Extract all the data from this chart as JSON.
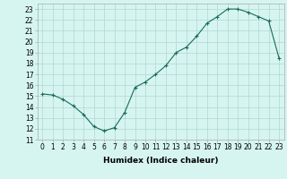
{
  "x": [
    0,
    1,
    2,
    3,
    4,
    5,
    6,
    7,
    8,
    9,
    10,
    11,
    12,
    13,
    14,
    15,
    16,
    17,
    18,
    19,
    20,
    21,
    22,
    23
  ],
  "y": [
    15.2,
    15.1,
    14.7,
    14.1,
    13.3,
    12.2,
    11.8,
    12.1,
    13.5,
    15.8,
    16.3,
    17.0,
    17.8,
    19.0,
    19.5,
    20.5,
    21.7,
    22.3,
    23.0,
    23.0,
    22.7,
    22.3,
    21.9,
    18.5
  ],
  "xlabel": "Humidex (Indice chaleur)",
  "xlim": [
    -0.5,
    23.5
  ],
  "ylim": [
    11,
    23.5
  ],
  "yticks": [
    11,
    12,
    13,
    14,
    15,
    16,
    17,
    18,
    19,
    20,
    21,
    22,
    23
  ],
  "xticks": [
    0,
    1,
    2,
    3,
    4,
    5,
    6,
    7,
    8,
    9,
    10,
    11,
    12,
    13,
    14,
    15,
    16,
    17,
    18,
    19,
    20,
    21,
    22,
    23
  ],
  "line_color": "#1a6b5a",
  "marker": "+",
  "bg_color": "#d6f5f0",
  "grid_color": "#b0d8d0",
  "label_fontsize": 6.5,
  "tick_fontsize": 5.5
}
